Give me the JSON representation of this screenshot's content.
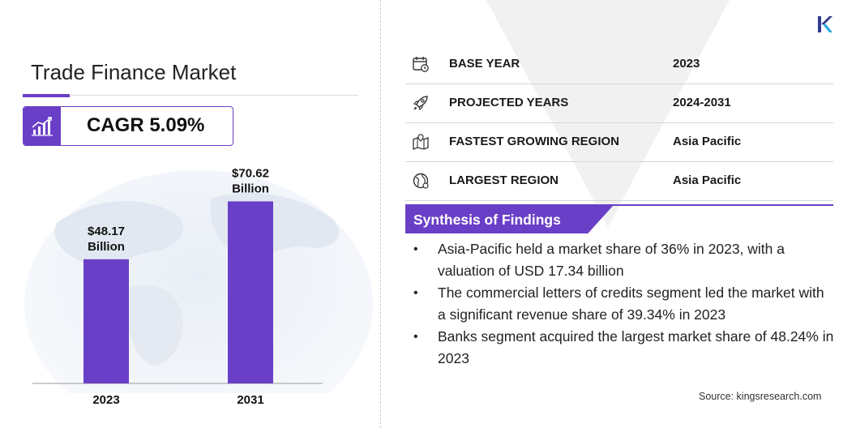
{
  "title": "Trade Finance Market",
  "cagr": "CAGR 5.09%",
  "chart_data": {
    "type": "bar",
    "categories": [
      "2023",
      "2031"
    ],
    "values": [
      48.17,
      70.62
    ],
    "data_labels": [
      [
        "$48.17",
        "Billion"
      ],
      [
        "$70.62",
        "Billion"
      ]
    ],
    "ylim": [
      0,
      100
    ],
    "grid": false,
    "color": "#6a3fc7"
  },
  "info": [
    {
      "icon": "calendar-icon",
      "label": "BASE YEAR",
      "value": "2023"
    },
    {
      "icon": "rocket-icon",
      "label": "PROJECTED YEARS",
      "value": "2024-2031"
    },
    {
      "icon": "region-map-icon",
      "label": "FASTEST GROWING REGION",
      "value": "Asia Pacific"
    },
    {
      "icon": "globe-icon",
      "label": "LARGEST REGION",
      "value": "Asia Pacific"
    }
  ],
  "synthesis": {
    "heading": "Synthesis of Findings",
    "items": [
      "Asia-Pacific held a market share of 36% in 2023, with a valuation of USD 17.34 billion",
      "The commercial letters of credits segment led the market with a significant revenue share of 39.34% in 2023",
      "Banks segment acquired the largest market share of 48.24% in 2023"
    ]
  },
  "source": "Source:  kingsresearch.com",
  "colors": {
    "accent": "#6a3fc7"
  }
}
